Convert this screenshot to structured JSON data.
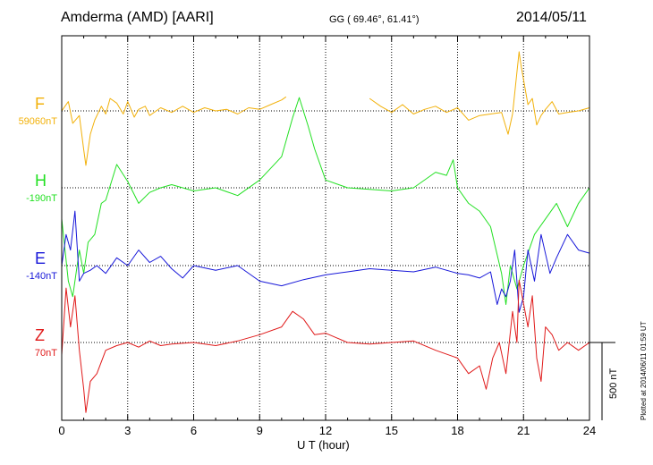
{
  "header": {
    "station": "Amderma (AMD)  [AARI]",
    "coords": "GG ( 69.46°,  61.41°)",
    "date": "2014/05/11"
  },
  "footnote": "Plotted at 2014/06/11 01:59 UT",
  "colors": {
    "F": "#f2b10a",
    "H": "#22e022",
    "E": "#1717d9",
    "Z": "#e01a1a"
  },
  "chart_data": {
    "type": "line",
    "title": "",
    "xlabel": "U T (hour)",
    "xlim": [
      0,
      24
    ],
    "xticks": [
      "0",
      "3",
      "6",
      "9",
      "12",
      "15",
      "18",
      "21",
      "24"
    ],
    "scale_label": "500 nT",
    "grid": true,
    "channels": [
      {
        "name": "F",
        "baseline_label": "59060nT",
        "color": "#f2b10a",
        "x": [
          0,
          0.3,
          0.5,
          0.8,
          1.0,
          1.1,
          1.3,
          1.5,
          1.8,
          2.0,
          2.2,
          2.5,
          2.8,
          3.0,
          3.3,
          3.5,
          3.8,
          4.0,
          4.5,
          5.0,
          5.5,
          6.0,
          6.5,
          7.0,
          7.5,
          8.0,
          8.5,
          9.0,
          9.5,
          10.0,
          10.2,
          null,
          14.0,
          14.5,
          15.0,
          15.5,
          16.0,
          16.5,
          17.0,
          17.5,
          18.0,
          18.5,
          19.0,
          19.5,
          20.0,
          20.3,
          20.5,
          20.7,
          20.8,
          20.9,
          21.0,
          21.2,
          21.4,
          21.6,
          21.8,
          22.0,
          22.3,
          22.6,
          23.0,
          23.5,
          24.0
        ],
        "y": [
          0,
          60,
          -80,
          -30,
          -250,
          -350,
          -150,
          -60,
          30,
          -20,
          80,
          50,
          -20,
          60,
          -40,
          10,
          30,
          -30,
          20,
          -10,
          30,
          -10,
          20,
          0,
          10,
          -20,
          20,
          10,
          40,
          70,
          90,
          null,
          80,
          30,
          -10,
          40,
          -20,
          10,
          30,
          -10,
          20,
          -60,
          -30,
          -20,
          -10,
          -150,
          -20,
          250,
          380,
          280,
          200,
          40,
          80,
          -90,
          -30,
          10,
          60,
          -20,
          -10,
          0,
          20
        ]
      },
      {
        "name": "H",
        "baseline_label": "-190nT",
        "color": "#22e022",
        "x": [
          0,
          0.3,
          0.5,
          0.8,
          1.0,
          1.2,
          1.5,
          1.8,
          2.0,
          2.5,
          3.0,
          3.5,
          4.0,
          4.5,
          5.0,
          6.0,
          7.0,
          8.0,
          9.0,
          10.0,
          10.5,
          10.8,
          11.2,
          11.5,
          12.0,
          13.0,
          14.0,
          15.0,
          16.0,
          17.0,
          17.5,
          17.8,
          18.0,
          18.5,
          19.0,
          19.5,
          20.0,
          20.2,
          20.4,
          20.7,
          21.0,
          21.5,
          22.0,
          22.5,
          23.0,
          23.5,
          24.0
        ],
        "y": [
          -200,
          -600,
          -700,
          -400,
          -550,
          -350,
          -300,
          -100,
          -80,
          150,
          40,
          -100,
          -30,
          0,
          20,
          -20,
          0,
          -50,
          50,
          200,
          450,
          580,
          400,
          250,
          50,
          0,
          -10,
          -20,
          0,
          100,
          80,
          180,
          0,
          -100,
          -150,
          -250,
          -550,
          -750,
          -500,
          -650,
          -500,
          -300,
          -200,
          -100,
          -250,
          -100,
          0
        ]
      },
      {
        "name": "E",
        "baseline_label": "-140nT",
        "color": "#1717d9",
        "x": [
          0,
          0.2,
          0.4,
          0.6,
          0.8,
          1.0,
          1.3,
          1.6,
          2.0,
          2.5,
          3.0,
          3.5,
          4.0,
          4.5,
          5.0,
          5.5,
          6.0,
          7.0,
          8.0,
          9.0,
          10.0,
          11.0,
          12.0,
          13.0,
          14.0,
          15.0,
          16.0,
          17.0,
          18.0,
          18.5,
          19.0,
          19.5,
          19.8,
          20.0,
          20.2,
          20.4,
          20.6,
          20.8,
          21.0,
          21.2,
          21.5,
          21.8,
          22.2,
          22.5,
          23.0,
          23.5,
          24.0
        ],
        "y": [
          0,
          200,
          100,
          350,
          -100,
          -50,
          -30,
          0,
          -50,
          50,
          0,
          100,
          20,
          60,
          -20,
          -80,
          0,
          -30,
          0,
          -100,
          -130,
          -90,
          -60,
          -40,
          -20,
          -30,
          -40,
          -10,
          -50,
          -60,
          -80,
          -40,
          -250,
          -150,
          -200,
          -100,
          100,
          -300,
          -200,
          100,
          -100,
          200,
          -50,
          50,
          200,
          100,
          80
        ]
      },
      {
        "name": "Z",
        "baseline_label": "70nT",
        "color": "#e01a1a",
        "x": [
          0,
          0.2,
          0.4,
          0.6,
          0.8,
          1.0,
          1.1,
          1.3,
          1.6,
          2.0,
          2.5,
          3.0,
          3.5,
          4.0,
          4.5,
          5.0,
          6.0,
          7.0,
          8.0,
          9.0,
          10.0,
          10.5,
          11.0,
          11.5,
          12.0,
          12.5,
          13.0,
          14.0,
          15.0,
          16.0,
          17.0,
          18.0,
          18.5,
          19.0,
          19.3,
          19.6,
          19.9,
          20.2,
          20.5,
          20.7,
          20.8,
          21.0,
          21.2,
          21.4,
          21.6,
          21.8,
          22.0,
          22.3,
          22.6,
          23.0,
          23.5,
          24.0
        ],
        "y": [
          -80,
          350,
          100,
          300,
          -50,
          -300,
          -450,
          -250,
          -200,
          -50,
          -20,
          0,
          -30,
          10,
          -20,
          -10,
          0,
          -20,
          10,
          50,
          100,
          200,
          150,
          50,
          60,
          30,
          0,
          -10,
          0,
          10,
          -50,
          -100,
          -200,
          -150,
          -300,
          -100,
          0,
          -200,
          200,
          0,
          400,
          250,
          100,
          300,
          -100,
          -250,
          100,
          50,
          -50,
          0,
          -50,
          0
        ]
      }
    ]
  }
}
